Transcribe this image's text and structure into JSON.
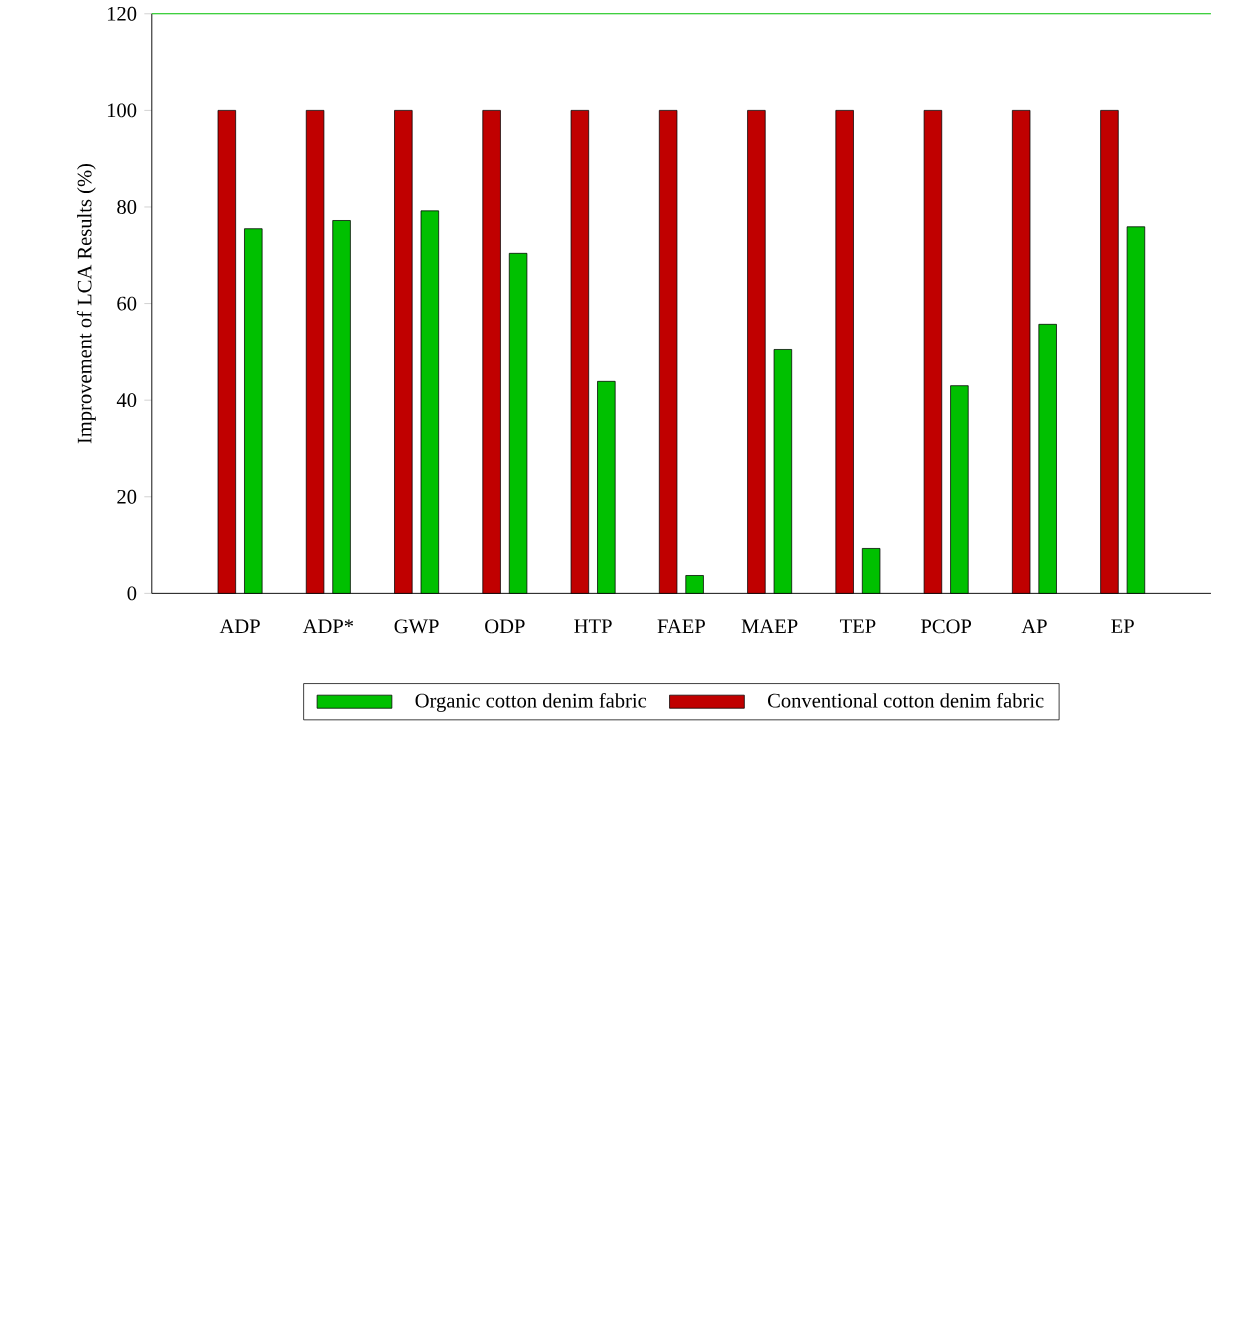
{
  "chart_data": {
    "type": "bar",
    "ylabel": "Improvement of LCA Results (%)",
    "categories": [
      "ADP",
      "ADP*",
      "GWP",
      "ODP",
      "HTP",
      "FAEP",
      "MAEP",
      "TEP",
      "PCOP",
      "AP",
      "EP"
    ],
    "series": [
      {
        "name": "Conventional cotton denim fabric",
        "color": "#c00000",
        "values": [
          100,
          100,
          100,
          100,
          100,
          100,
          100,
          100,
          100,
          100,
          100
        ]
      },
      {
        "name": "Organic cotton denim fabric",
        "color": "#00c000",
        "values": [
          75.5,
          77.2,
          79.2,
          70.4,
          43.9,
          3.7,
          50.5,
          9.3,
          43.0,
          55.7,
          75.9
        ]
      }
    ],
    "ylim": [
      0,
      120
    ],
    "yticks": [
      0,
      20,
      40,
      60,
      80,
      100,
      120
    ],
    "ref_lines": [
      {
        "axis": "y",
        "value": 120,
        "color": "#00c000"
      }
    ],
    "legend": "bottom",
    "grid": false
  }
}
